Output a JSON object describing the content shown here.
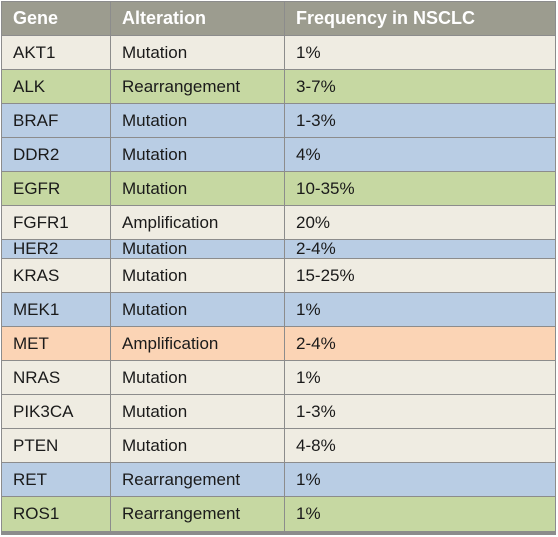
{
  "header": {
    "gene": "Gene",
    "alteration": "Alteration",
    "frequency": "Frequency in NSCLC",
    "color": "#9c9c8f"
  },
  "rows": [
    {
      "gene": "AKT1",
      "alteration": "Mutation",
      "frequency": "1%",
      "color": "#efece2"
    },
    {
      "gene": "ALK",
      "alteration": "Rearrangement",
      "frequency": "3-7%",
      "color": "#c6d8a2"
    },
    {
      "gene": "BRAF",
      "alteration": "Mutation",
      "frequency": "1-3%",
      "color": "#b9cde4"
    },
    {
      "gene": "DDR2",
      "alteration": "Mutation",
      "frequency": "4%",
      "color": "#b9cde4"
    },
    {
      "gene": "EGFR",
      "alteration": "Mutation",
      "frequency": "10-35%",
      "color": "#c6d8a2"
    },
    {
      "gene": "FGFR1",
      "alteration": "Amplification",
      "frequency": "20%",
      "color": "#efece2"
    },
    {
      "gene": "HER2",
      "alteration": "Mutation",
      "frequency": "2-4%",
      "color": "#b9cde4"
    },
    {
      "gene": "KRAS",
      "alteration": "Mutation",
      "frequency": "15-25%",
      "color": "#efece2"
    },
    {
      "gene": "MEK1",
      "alteration": "Mutation",
      "frequency": "1%",
      "color": "#b9cde4"
    },
    {
      "gene": "MET",
      "alteration": "Amplification",
      "frequency": "2-4%",
      "color": "#fbd4b5"
    },
    {
      "gene": "NRAS",
      "alteration": "Mutation",
      "frequency": "1%",
      "color": "#efece2"
    },
    {
      "gene": "PIK3CA",
      "alteration": "Mutation",
      "frequency": "1-3%",
      "color": "#efece2"
    },
    {
      "gene": "PTEN",
      "alteration": "Mutation",
      "frequency": "4-8%",
      "color": "#efece2"
    },
    {
      "gene": "RET",
      "alteration": "Rearrangement",
      "frequency": "1%",
      "color": "#b9cde4"
    },
    {
      "gene": "ROS1",
      "alteration": "Rearrangement",
      "frequency": "1%",
      "color": "#c6d8a2"
    }
  ]
}
